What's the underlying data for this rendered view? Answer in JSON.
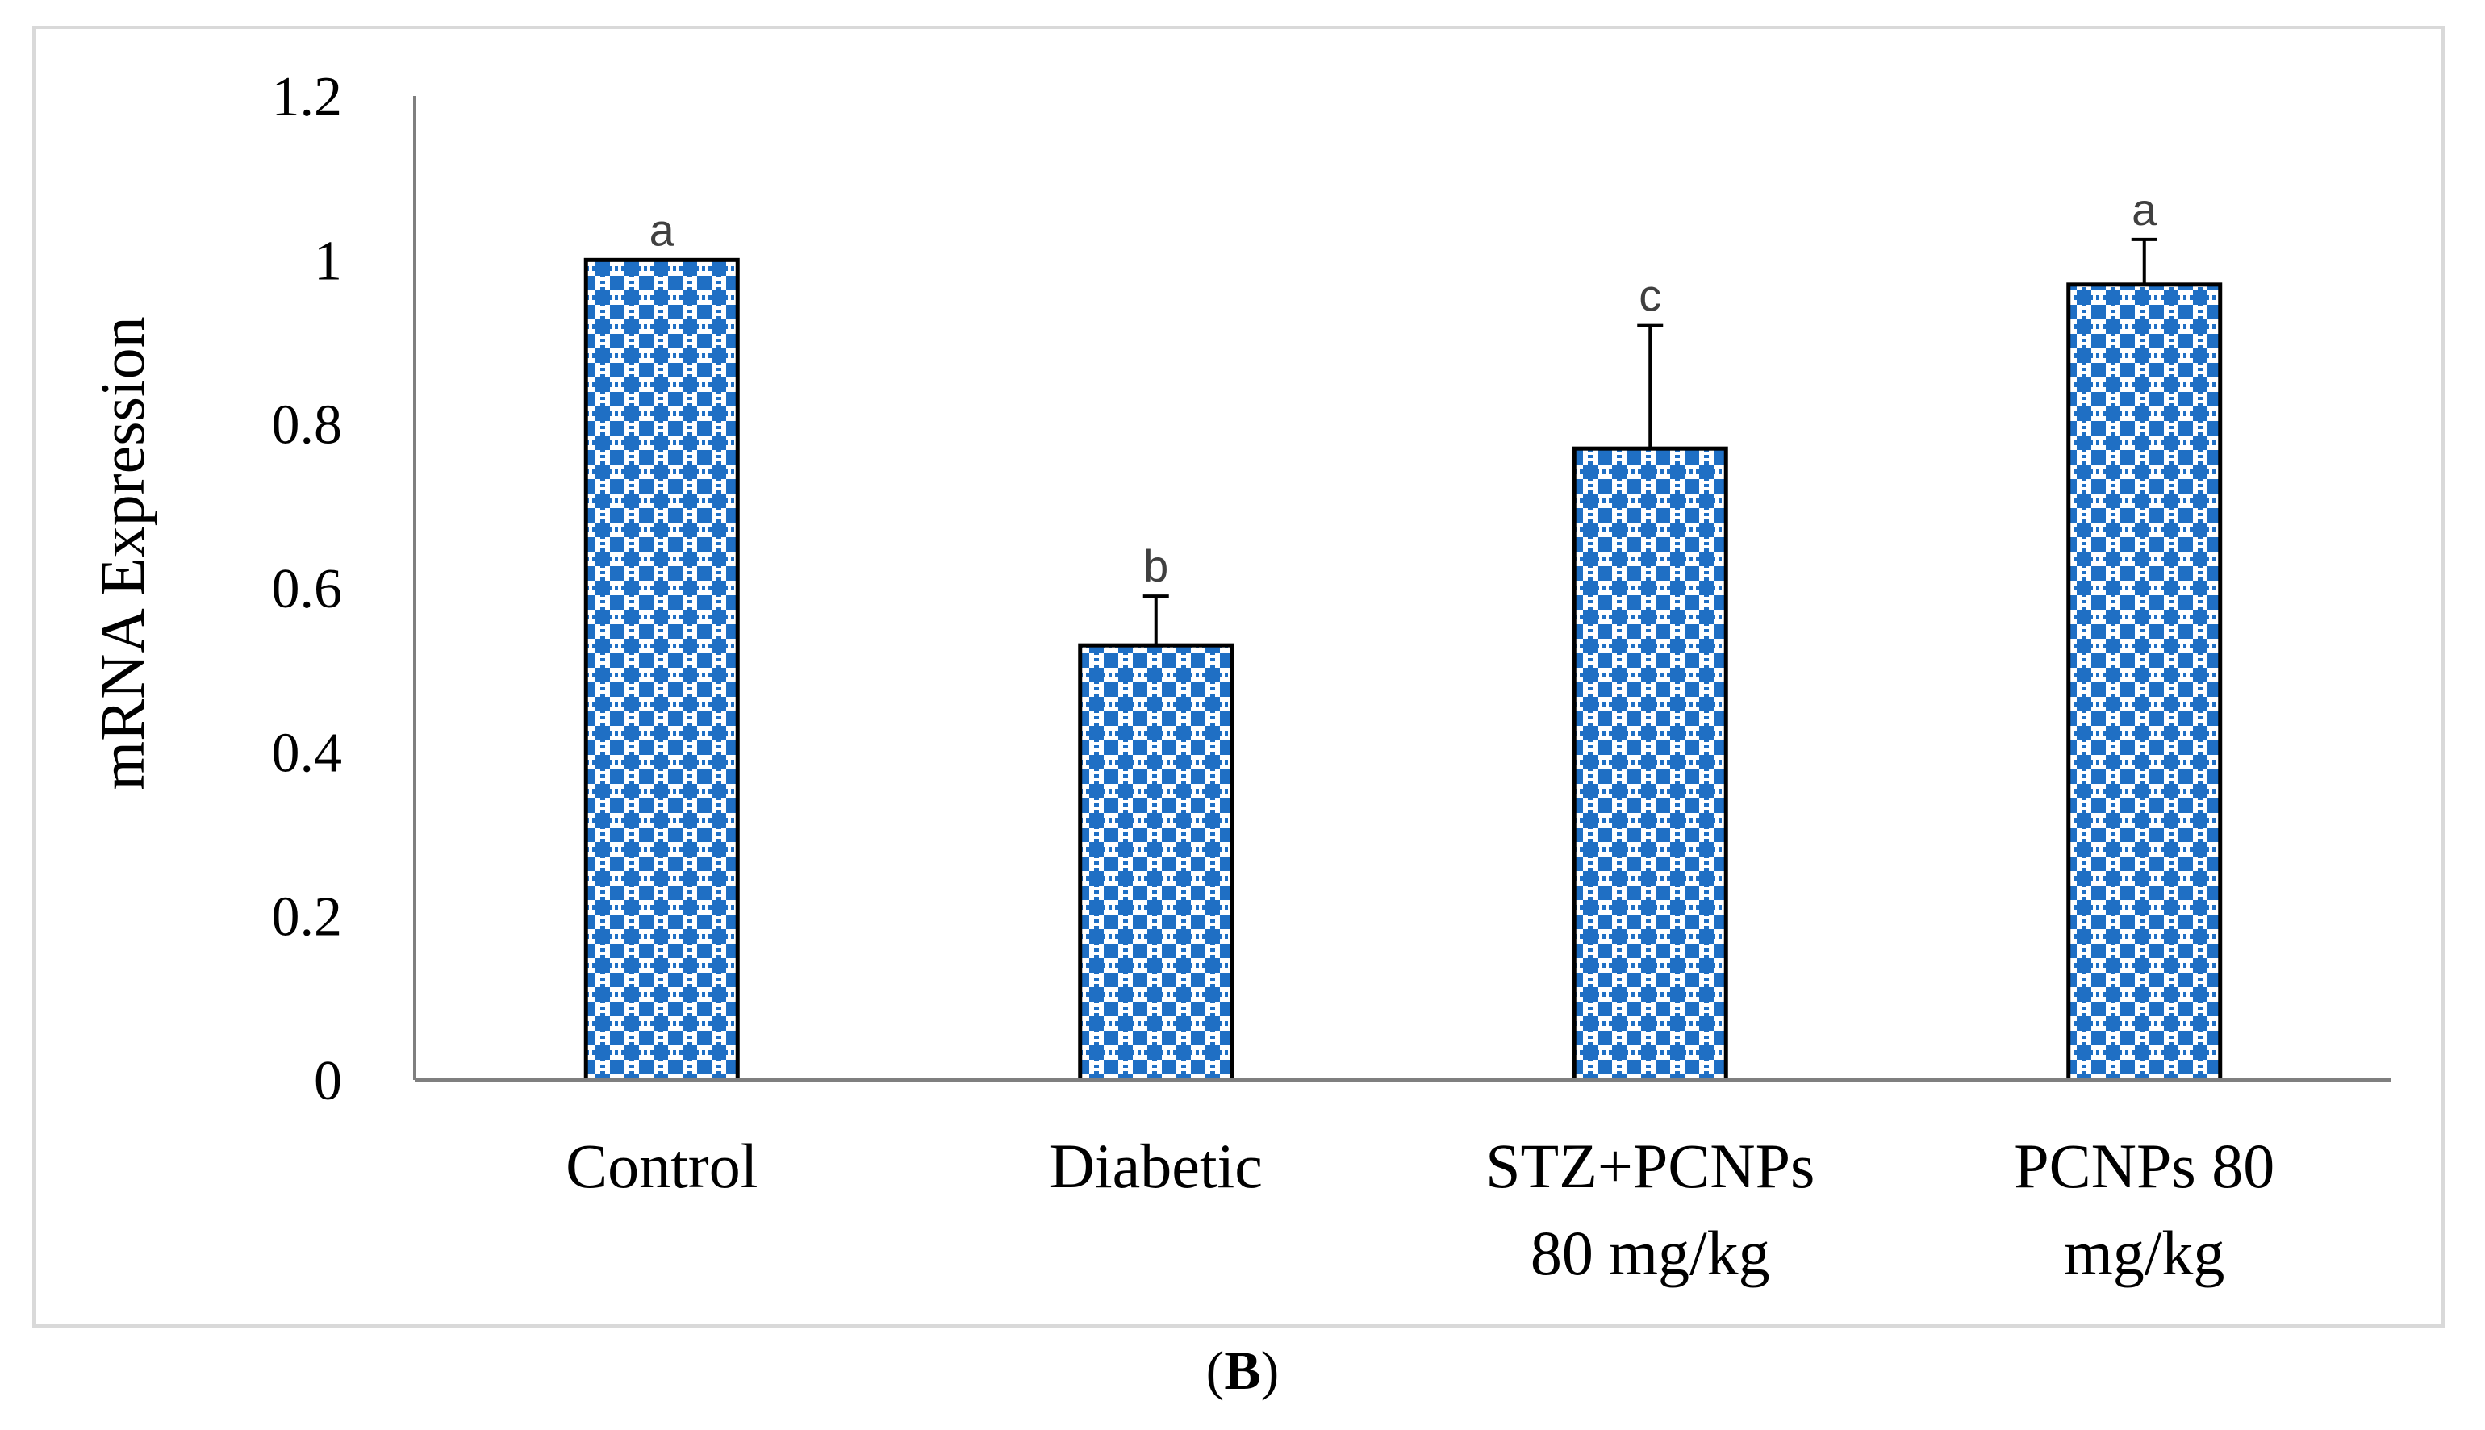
{
  "chart_data": {
    "type": "bar",
    "title": "",
    "xlabel": "",
    "ylabel": "mRNA Expression",
    "ylim": [
      0,
      1.2
    ],
    "yticks": [
      "0",
      "0.2",
      "0.4",
      "0.6",
      "0.8",
      "1",
      "1.2"
    ],
    "ytick_values": [
      0,
      0.2,
      0.4,
      0.6,
      0.8,
      1.0,
      1.2
    ],
    "grid": false,
    "categories": [
      [
        "Control"
      ],
      [
        "Diabetic"
      ],
      [
        "STZ+PCNPs",
        "80 mg/kg"
      ],
      [
        "PCNPs 80",
        "mg/kg"
      ]
    ],
    "values": [
      1.0,
      0.53,
      0.77,
      0.97
    ],
    "error_upper": [
      0.0,
      0.06,
      0.15,
      0.055
    ],
    "significance_letters": [
      "a",
      "b",
      "c",
      "a"
    ],
    "bar_fill_color": "#1f6fc4",
    "bar_pattern_color": "#ffffff",
    "bar_edge_color": "#000000",
    "axis_color": "#7f7f7f"
  },
  "panel": {
    "open": "(",
    "letter": "B",
    "close": ")"
  }
}
